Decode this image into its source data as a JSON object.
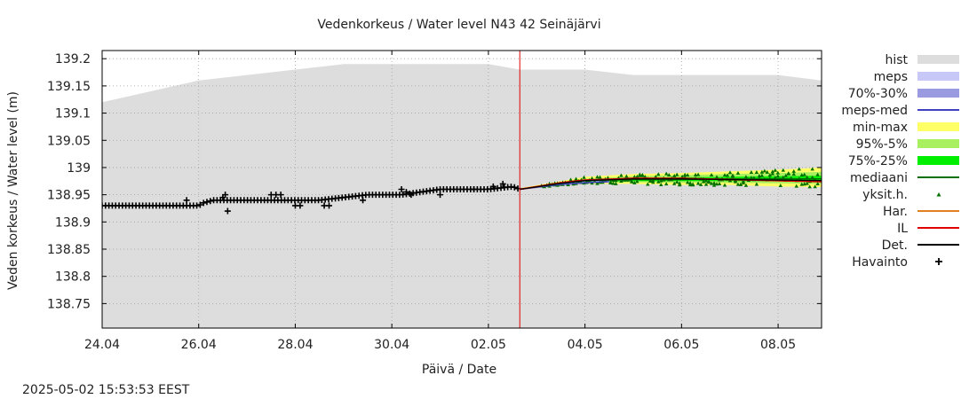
{
  "chart_data": {
    "type": "line",
    "title": "Vedenkorkeus / Water level   N43 42 Seinäjärvi",
    "xlabel": "Päivä / Date",
    "ylabel": "Veden korkeus / Water level (m)",
    "timestamp": "2025-05-02 15:53:53 EEST",
    "x_range_days": [
      0,
      14.9
    ],
    "ylim": [
      138.705,
      139.215
    ],
    "y_ticks": [
      {
        "value": 139.2,
        "label": "139.2"
      },
      {
        "value": 139.15,
        "label": "139.15"
      },
      {
        "value": 139.1,
        "label": "139.1"
      },
      {
        "value": 139.05,
        "label": "139.05"
      },
      {
        "value": 139.0,
        "label": "139"
      },
      {
        "value": 138.95,
        "label": "138.95"
      },
      {
        "value": 138.9,
        "label": "138.9"
      },
      {
        "value": 138.85,
        "label": "138.85"
      },
      {
        "value": 138.8,
        "label": "138.8"
      },
      {
        "value": 138.75,
        "label": "138.75"
      }
    ],
    "x_ticks": [
      {
        "day": 0,
        "label": "24.04"
      },
      {
        "day": 2,
        "label": "26.04"
      },
      {
        "day": 4,
        "label": "28.04"
      },
      {
        "day": 6,
        "label": "30.04"
      },
      {
        "day": 8,
        "label": "02.05"
      },
      {
        "day": 10,
        "label": "04.05"
      },
      {
        "day": 12,
        "label": "06.05"
      },
      {
        "day": 14,
        "label": "08.05"
      }
    ],
    "forecast_start_day": 8.65,
    "hist_upper": [
      [
        0,
        139.12
      ],
      [
        2,
        139.16
      ],
      [
        5,
        139.19
      ],
      [
        8,
        139.19
      ],
      [
        8.65,
        139.18
      ],
      [
        10,
        139.18
      ],
      [
        11,
        139.17
      ],
      [
        14,
        139.17
      ],
      [
        14.9,
        139.16
      ]
    ],
    "hist_lower": 138.705,
    "observations": [
      [
        0,
        138.93
      ],
      [
        2,
        138.93
      ],
      [
        2.1,
        138.935
      ],
      [
        2.3,
        138.94
      ],
      [
        3.3,
        138.94
      ],
      [
        3.7,
        138.94
      ],
      [
        4.5,
        138.94
      ],
      [
        5.5,
        138.95
      ],
      [
        6.2,
        138.95
      ],
      [
        7.0,
        138.96
      ],
      [
        8.0,
        138.96
      ],
      [
        8.5,
        138.965
      ],
      [
        8.65,
        138.96
      ]
    ],
    "outlier_observations": [
      [
        1.75,
        138.94
      ],
      [
        2.55,
        138.95
      ],
      [
        2.5,
        138.945
      ],
      [
        2.6,
        138.92
      ],
      [
        3.5,
        138.95
      ],
      [
        3.6,
        138.95
      ],
      [
        3.7,
        138.95
      ],
      [
        4.0,
        138.93
      ],
      [
        4.1,
        138.93
      ],
      [
        4.6,
        138.93
      ],
      [
        4.7,
        138.93
      ],
      [
        5.4,
        138.94
      ],
      [
        6.4,
        138.95
      ],
      [
        6.2,
        138.96
      ],
      [
        6.3,
        138.955
      ],
      [
        7.0,
        138.95
      ],
      [
        7.7,
        138.96
      ],
      [
        8.1,
        138.965
      ],
      [
        8.3,
        138.97
      ]
    ],
    "minmax_band": {
      "upper": [
        [
          8.65,
          138.962
        ],
        [
          9.5,
          138.975
        ],
        [
          10,
          138.983
        ],
        [
          11,
          138.988
        ],
        [
          12,
          138.99
        ],
        [
          13,
          138.993
        ],
        [
          14,
          138.996
        ],
        [
          14.9,
          139.0
        ]
      ],
      "lower": [
        [
          8.65,
          138.96
        ],
        [
          9.5,
          138.968
        ],
        [
          10,
          138.97
        ],
        [
          11,
          138.97
        ],
        [
          12,
          138.968
        ],
        [
          13,
          138.968
        ],
        [
          14,
          138.965
        ],
        [
          14.9,
          138.964
        ]
      ]
    },
    "p95_5_band": {
      "upper": [
        [
          8.65,
          138.961
        ],
        [
          9.5,
          138.973
        ],
        [
          10,
          138.979
        ],
        [
          11,
          138.984
        ],
        [
          12,
          138.986
        ],
        [
          13,
          138.988
        ],
        [
          14,
          138.99
        ],
        [
          14.9,
          138.992
        ]
      ],
      "lower": [
        [
          8.65,
          138.96
        ],
        [
          9.5,
          138.97
        ],
        [
          10,
          138.972
        ],
        [
          11,
          138.973
        ],
        [
          12,
          138.972
        ],
        [
          13,
          138.972
        ],
        [
          14,
          138.971
        ],
        [
          14.9,
          138.97
        ]
      ]
    },
    "p75_25_band": {
      "upper": [
        [
          8.65,
          138.961
        ],
        [
          9.5,
          138.972
        ],
        [
          10,
          138.977
        ],
        [
          11,
          138.981
        ],
        [
          12,
          138.982
        ],
        [
          13,
          138.983
        ],
        [
          14,
          138.984
        ],
        [
          14.9,
          138.985
        ]
      ],
      "lower": [
        [
          8.65,
          138.96
        ],
        [
          9.5,
          138.971
        ],
        [
          10,
          138.974
        ],
        [
          11,
          138.975
        ],
        [
          12,
          138.975
        ],
        [
          13,
          138.975
        ],
        [
          14,
          138.975
        ],
        [
          14.9,
          138.975
        ]
      ]
    },
    "meps_band": {
      "upper": [
        [
          8.65,
          138.961
        ],
        [
          9.5,
          138.972
        ],
        [
          10,
          138.976
        ],
        [
          10.5,
          138.977
        ]
      ],
      "lower": [
        [
          8.65,
          138.959
        ],
        [
          9.5,
          138.967
        ],
        [
          10,
          138.971
        ],
        [
          10.5,
          138.972
        ]
      ]
    },
    "meps_med": [
      [
        8.65,
        138.96
      ],
      [
        9.5,
        138.969
      ],
      [
        10,
        138.972
      ],
      [
        10.5,
        138.974
      ]
    ],
    "mediaani": [
      [
        8.65,
        138.96
      ],
      [
        9.5,
        138.971
      ],
      [
        10,
        138.976
      ],
      [
        11,
        138.978
      ],
      [
        12,
        138.978
      ],
      [
        13,
        138.979
      ],
      [
        14,
        138.979
      ],
      [
        14.9,
        138.979
      ]
    ],
    "il": [
      [
        8.65,
        138.96
      ],
      [
        9.5,
        138.972
      ],
      [
        10,
        138.977
      ],
      [
        11,
        138.98
      ],
      [
        12,
        138.98
      ],
      [
        13,
        138.978
      ],
      [
        14,
        138.976
      ],
      [
        14.9,
        138.974
      ]
    ],
    "det": [
      [
        8.65,
        138.96
      ],
      [
        9.5,
        138.971
      ],
      [
        10,
        138.976
      ],
      [
        11,
        138.979
      ],
      [
        12,
        138.979
      ],
      [
        13,
        138.978
      ],
      [
        14,
        138.977
      ],
      [
        14.9,
        138.976
      ]
    ],
    "legend": [
      {
        "label": "hist",
        "symbol": "box",
        "color": "#dddddd"
      },
      {
        "label": "meps",
        "symbol": "box",
        "color": "#c8c8f8"
      },
      {
        "label": "70%-30%",
        "symbol": "box",
        "color": "#9a9ae0"
      },
      {
        "label": "meps-med",
        "symbol": "line",
        "color": "#4040c0"
      },
      {
        "label": "min-max",
        "symbol": "box",
        "color": "#ffff66"
      },
      {
        "label": "95%-5%",
        "symbol": "box",
        "color": "#a8f060"
      },
      {
        "label": "75%-25%",
        "symbol": "box",
        "color": "#00ee00"
      },
      {
        "label": "mediaani",
        "symbol": "line",
        "color": "#007000"
      },
      {
        "label": "yksit.h.",
        "symbol": "triangle",
        "color": "#007000"
      },
      {
        "label": "Har.",
        "symbol": "line",
        "color": "#e08020"
      },
      {
        "label": "IL",
        "symbol": "line",
        "color": "#e00000"
      },
      {
        "label": "Det.",
        "symbol": "line",
        "color": "#000000"
      },
      {
        "label": "Havainto",
        "symbol": "plus",
        "color": "#000000"
      }
    ]
  }
}
